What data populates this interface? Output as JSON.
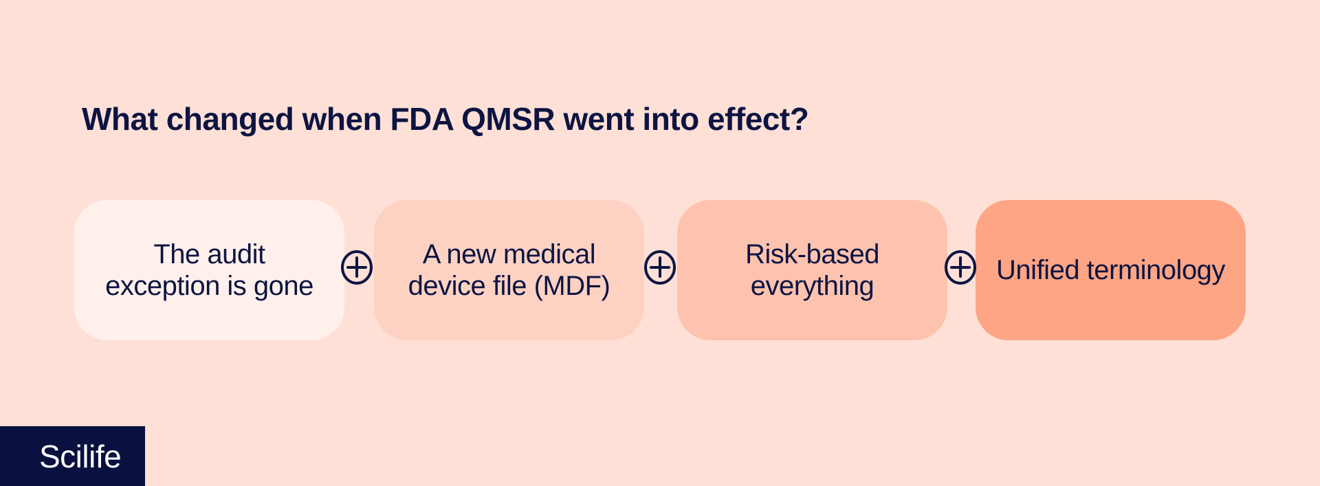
{
  "title": "What changed when FDA QMSR went into effect?",
  "steps": [
    {
      "label": "The audit exception is gone",
      "color": "#fff0eb"
    },
    {
      "label": "A new medical device file (MDF)",
      "color": "#fdd2c3"
    },
    {
      "label": "Risk-based everything",
      "color": "#fec3ae"
    },
    {
      "label": "Unified terminology",
      "color": "#fda584"
    }
  ],
  "connector_icon": "circled-plus-icon",
  "logo": "Scilife"
}
